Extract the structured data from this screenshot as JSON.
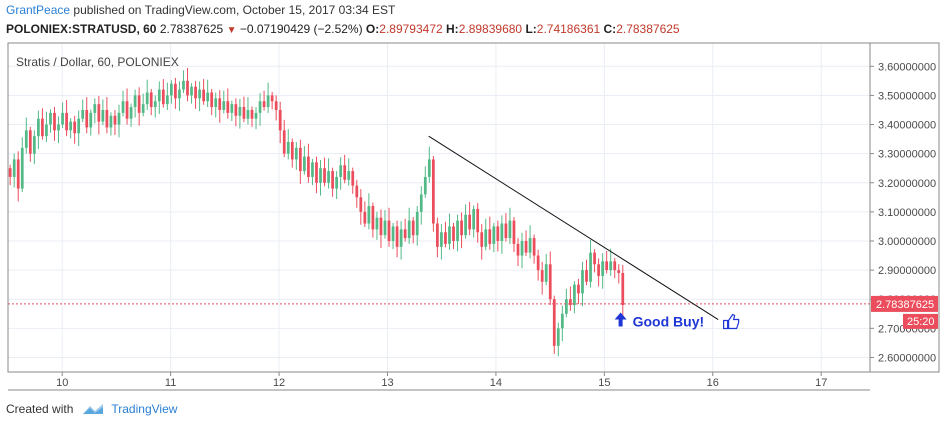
{
  "header": {
    "author": "GrantPeace",
    "published_text": "published on TradingView.com, October 15, 2017 03:34 EST"
  },
  "ohlc_bar": {
    "symbol": "POLONIEX:STRATUSD, 60",
    "last": "2.78387625",
    "change": "−0.07190429 (−2.52%)",
    "o_label": "O:",
    "o": "2.89793472",
    "h_label": "H:",
    "h": "2.89839680",
    "l_label": "L:",
    "l": "2.74186361",
    "c_label": "C:",
    "c": "2.78387625"
  },
  "footer": {
    "created_with": "Created with",
    "brand": "TradingView"
  },
  "colors": {
    "up": "#53b987",
    "down": "#eb4d5c",
    "grid": "#e9eef4",
    "axis_text": "#4a4a4a",
    "price_line": "#eb4d5c",
    "annotation": "#1f35d6"
  },
  "chart_data": {
    "type": "candlestick",
    "title": "Stratis / Dollar, 60, POLONIEX",
    "xlabel": "",
    "ylabel": "",
    "x_ticks": [
      "10",
      "11",
      "12",
      "13",
      "14",
      "15",
      "16",
      "17"
    ],
    "y_ticks": [
      "2.60000000",
      "2.70000000",
      "2.80000000",
      "2.90000000",
      "3.00000000",
      "3.10000000",
      "3.20000000",
      "3.30000000",
      "3.40000000",
      "3.50000000",
      "3.60000000"
    ],
    "ylim": [
      2.55,
      3.68
    ],
    "xlim": [
      9.5,
      17.45
    ],
    "last_price_label": "2.78387625",
    "countdown_label": "25:20",
    "annotation": "Good Buy!",
    "trendline": {
      "start": [
        13.38,
        3.36
      ],
      "end": [
        16.05,
        2.73
      ]
    },
    "grid": true,
    "closes": [
      3.22,
      3.28,
      3.18,
      3.32,
      3.38,
      3.3,
      3.36,
      3.42,
      3.36,
      3.4,
      3.44,
      3.38,
      3.4,
      3.44,
      3.38,
      3.41,
      3.37,
      3.42,
      3.45,
      3.39,
      3.44,
      3.47,
      3.41,
      3.45,
      3.39,
      3.43,
      3.4,
      3.44,
      3.48,
      3.42,
      3.46,
      3.5,
      3.44,
      3.47,
      3.51,
      3.46,
      3.48,
      3.52,
      3.47,
      3.5,
      3.54,
      3.49,
      3.52,
      3.55,
      3.5,
      3.53,
      3.49,
      3.52,
      3.48,
      3.51,
      3.46,
      3.49,
      3.45,
      3.48,
      3.44,
      3.47,
      3.43,
      3.46,
      3.42,
      3.45,
      3.42,
      3.44,
      3.48,
      3.46,
      3.5,
      3.48,
      3.45,
      3.38,
      3.3,
      3.34,
      3.28,
      3.32,
      3.24,
      3.29,
      3.22,
      3.27,
      3.2,
      3.25,
      3.2,
      3.24,
      3.18,
      3.22,
      3.26,
      3.21,
      3.24,
      3.19,
      3.15,
      3.1,
      3.06,
      3.12,
      3.04,
      3.08,
      3.02,
      3.07,
      3.0,
      3.05,
      2.98,
      3.04,
      3.01,
      3.07,
      3.02,
      3.1,
      3.16,
      3.22,
      3.28,
      3.06,
      2.98,
      3.03,
      2.99,
      3.05,
      3.0,
      3.07,
      3.02,
      3.09,
      3.04,
      3.11,
      3.03,
      2.98,
      3.04,
      2.99,
      3.05,
      3.0,
      3.06,
      3.01,
      3.07,
      2.99,
      2.95,
      3.0,
      2.96,
      3.01,
      2.95,
      2.9,
      2.86,
      2.92,
      2.8,
      2.64,
      2.7,
      2.75,
      2.8,
      2.78,
      2.85,
      2.82,
      2.9,
      2.86,
      2.96,
      2.92,
      2.88,
      2.93,
      2.9,
      2.93,
      2.9,
      2.89,
      2.78
    ]
  }
}
